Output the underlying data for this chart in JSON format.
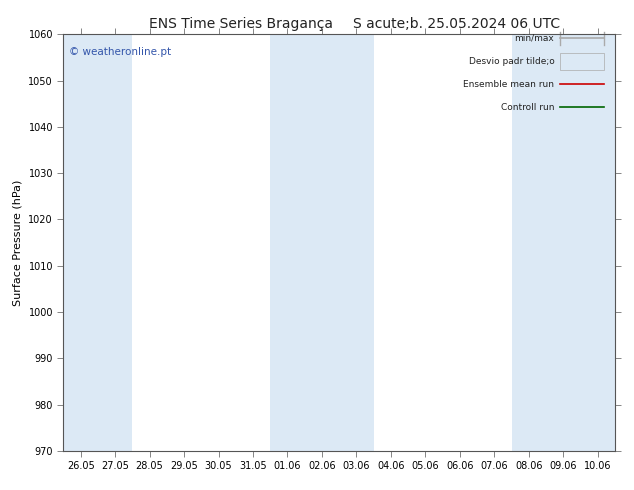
{
  "title_left": "ENS Time Series Bragança",
  "title_right": "S acute;b. 25.05.2024 06 UTC",
  "ylabel": "Surface Pressure (hPa)",
  "watermark": "© weatheronline.pt",
  "ylim": [
    970,
    1060
  ],
  "yticks": [
    970,
    980,
    990,
    1000,
    1010,
    1020,
    1030,
    1040,
    1050,
    1060
  ],
  "x_labels": [
    "26.05",
    "27.05",
    "28.05",
    "29.05",
    "30.05",
    "31.05",
    "01.06",
    "02.06",
    "03.06",
    "04.06",
    "05.06",
    "06.06",
    "07.06",
    "08.06",
    "09.06",
    "10.06"
  ],
  "n_ticks": 16,
  "bg_color": "#ffffff",
  "band_color": "#dce9f5",
  "band_indices": [
    0,
    1,
    6,
    7,
    8,
    13,
    14,
    15
  ],
  "legend_labels": [
    "min/max",
    "Desvio padr tilde;o",
    "Ensemble mean run",
    "Controll run"
  ],
  "minmax_color": "#aaaaaa",
  "desvio_color": "#dce9f5",
  "ensemble_color": "#cc0000",
  "control_color": "#006600",
  "title_fontsize": 10,
  "label_fontsize": 8,
  "tick_fontsize": 7
}
